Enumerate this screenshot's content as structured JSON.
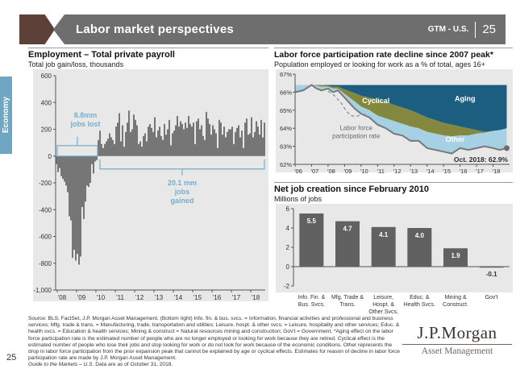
{
  "header": {
    "title": "Labor market perspectives",
    "gtm_label": "GTM - U.S.",
    "page_number": "25"
  },
  "sidebar": {
    "section_label": "Economy"
  },
  "page_number_footer": "25",
  "colors": {
    "header_gray": "#6e6e6e",
    "arrow_brown": "#5d4037",
    "tab_blue": "#6fa7c2",
    "bar_gray": "#616161",
    "annotation_blue": "#74afcd",
    "aging_blue": "#1b5e80",
    "cyclical_olive": "#84883e",
    "other_lightblue": "#a6d0e4",
    "line_gray": "#787878",
    "plot_bg": "#e8e8e8"
  },
  "footer": {
    "notes": "Source: BLS, FactSet, J.P. Morgan Asset Management. (Bottom right) Info. fin. & bus. svcs. = Information, financial activities and professional and business services; Mfg. trade & trans. = Manufacturing, trade, transportation and utilities; Leisure, hospt. & other svcs. = Leisure, hospitality and other services; Educ. & health svcs. = Education & health services; Mining & construct = Natural resources mining and construction; Gov't = Government. *Aging effect on the labor force participation rate is the estimated number of people who are no longer employed or looking for work because they are retired. Cyclical effect is the estimated number of people who lose their jobs and stop looking for work or do not look for work because of the economic conditions. Other represents the drop in labor force participation from the prior expansion peak that cannot be explained by age or cyclical effects. Estimates for reason of decline in labor force participation rate are made by J.P. Morgan Asset Management.",
    "asof_italic": "Guide to the Markets – U.S.",
    "asof_rest": " Data are as of October 31, 2018."
  },
  "logo": {
    "main": "J.P.Morgan",
    "sub": "Asset Management"
  },
  "chart_data": [
    {
      "type": "bar",
      "name": "payroll",
      "title": "Employment – Total private payroll",
      "subtitle": "Total job gain/loss, thousands",
      "ylabel": "Total job gain/loss, thousands",
      "ylim": [
        -1000,
        600
      ],
      "yticks": [
        600,
        400,
        200,
        0,
        -200,
        -400,
        -600,
        -800,
        -1000
      ],
      "ytick_labels": [
        "600",
        "400",
        "200",
        "0",
        "-200",
        "-400",
        "-600",
        "-800",
        "-1,000"
      ],
      "x_year_labels": [
        "'08",
        "'09",
        "'10",
        "'11",
        "'12",
        "'13",
        "'14",
        "'15",
        "'16",
        "'17",
        "'18"
      ],
      "start_month": "2008-01",
      "values": [
        -60,
        -120,
        -90,
        -150,
        -170,
        -190,
        -220,
        -270,
        -450,
        -480,
        -760,
        -700,
        -780,
        -730,
        -810,
        -750,
        -380,
        -470,
        -340,
        -220,
        -230,
        -200,
        -60,
        -130,
        -40,
        -30,
        120,
        190,
        90,
        60,
        90,
        110,
        130,
        170,
        140,
        120,
        90,
        220,
        250,
        320,
        110,
        230,
        70,
        180,
        250,
        340,
        180,
        200,
        310,
        270,
        230,
        90,
        110,
        70,
        150,
        170,
        110,
        220,
        240,
        210,
        180,
        290,
        140,
        190,
        220,
        150,
        120,
        240,
        160,
        200,
        270,
        80,
        170,
        190,
        230,
        300,
        220,
        260,
        240,
        200,
        250,
        210,
        300,
        240,
        220,
        250,
        90,
        260,
        280,
        200,
        230,
        150,
        120,
        330,
        280,
        240,
        160,
        230,
        200,
        170,
        60,
        270,
        250,
        160,
        220,
        140,
        180,
        200,
        200,
        220,
        90,
        180,
        210,
        230,
        140,
        190,
        60,
        250,
        280,
        160,
        170,
        290,
        140,
        180,
        260,
        220,
        160,
        270,
        140,
        250
      ],
      "annotations": {
        "jobs_lost": [
          "8.8mm",
          "jobs lost"
        ],
        "jobs_gained": [
          "20.1 mm",
          "jobs",
          "gained"
        ],
        "neg_span_months": [
          1,
          26
        ],
        "pos_span_months": [
          26,
          130
        ]
      }
    },
    {
      "type": "area",
      "name": "participation",
      "title": "Labor force participation rate decline since 2007 peak*",
      "subtitle": "Population employed or looking for work as a % of total, ages 16+",
      "ylim": [
        62,
        67
      ],
      "ytick_labels": [
        "67%",
        "66%",
        "65%",
        "64%",
        "63%",
        "62%"
      ],
      "x_year_labels": [
        "'06",
        "'07",
        "'08",
        "'09",
        "'10",
        "'11",
        "'12",
        "'13",
        "'14",
        "'15",
        "'16",
        "'17",
        "'18"
      ],
      "xlim": [
        2006,
        2019.0
      ],
      "top_flat": 66.4,
      "x": [
        2006,
        2006.5,
        2007,
        2007.3,
        2007.6,
        2008,
        2008.3,
        2008.6,
        2009,
        2009.3,
        2009.6,
        2010,
        2010.5,
        2011,
        2011.5,
        2012,
        2012.5,
        2013,
        2013.5,
        2014,
        2014.5,
        2015,
        2015.5,
        2016,
        2016.5,
        2017,
        2017.5,
        2018,
        2018.4,
        2018.83
      ],
      "line": [
        66.0,
        66.1,
        66.4,
        66.2,
        66.1,
        66.2,
        66.0,
        66.1,
        65.7,
        65.4,
        65.1,
        64.8,
        64.6,
        64.2,
        64.0,
        63.7,
        63.6,
        63.3,
        63.3,
        62.9,
        62.8,
        62.7,
        62.6,
        62.9,
        62.8,
        62.9,
        63.0,
        62.9,
        62.8,
        62.9
      ],
      "other_top": [
        66.4,
        66.4,
        66.4,
        66.35,
        66.3,
        66.3,
        66.2,
        66.2,
        65.9,
        65.7,
        65.5,
        65.2,
        65.0,
        64.7,
        64.55,
        64.4,
        64.25,
        64.1,
        64.0,
        63.8,
        63.7,
        63.6,
        63.55,
        63.6,
        63.6,
        63.7,
        63.75,
        63.85,
        63.9,
        64.0
      ],
      "cyclical_top": [
        66.4,
        66.4,
        66.4,
        66.4,
        66.4,
        66.35,
        66.3,
        66.3,
        66.15,
        66.05,
        65.95,
        65.8,
        65.7,
        65.6,
        65.45,
        65.3,
        65.15,
        65.0,
        64.8,
        64.6,
        64.45,
        64.3,
        64.2,
        64.1,
        64.0,
        63.9,
        63.8,
        63.85,
        63.9,
        64.0
      ],
      "dashed": [
        [
          2008.0,
          66.05
        ],
        [
          2008.4,
          65.8
        ],
        [
          2008.8,
          65.4
        ],
        [
          2009.1,
          64.95
        ],
        [
          2009.4,
          64.7
        ],
        [
          2009.7,
          64.65
        ],
        [
          2010.0,
          64.75
        ],
        [
          2010.3,
          64.8
        ]
      ],
      "labels": {
        "aging": "Aging",
        "cyclical": "Cyclical",
        "other": "Other",
        "lfpr": [
          "Labor force",
          "participation rate"
        ],
        "endpoint": "Oct. 2018: 62.9%"
      },
      "end_value": 62.9
    },
    {
      "type": "bar",
      "name": "netjobs",
      "title": "Net job creation since February 2010",
      "subtitle": "Millions of jobs",
      "ylim": [
        -2,
        6
      ],
      "yticks": [
        6,
        4,
        2,
        0,
        -2
      ],
      "ytick_labels": [
        "6",
        "4",
        "2",
        "0",
        "-2"
      ],
      "categories": [
        [
          "Info. Fin. &",
          "Bus. Svcs."
        ],
        [
          "Mfg. Trade &",
          "Trans."
        ],
        [
          "Leisure,",
          "Hospt. &",
          "Other Svcs."
        ],
        [
          "Educ. &",
          "Health Svcs."
        ],
        [
          "Mining &",
          "Construct."
        ],
        [
          "Gov't"
        ]
      ],
      "values": [
        5.5,
        4.7,
        4.1,
        4.0,
        1.9,
        -0.1
      ],
      "value_labels": [
        "5.5",
        "4.7",
        "4.1",
        "4.0",
        "1.9",
        "-0.1"
      ]
    }
  ],
  "panels": [
    {
      "title": "Employment – Total private payroll",
      "subtitle": "Total job gain/loss, thousands"
    },
    {
      "title": "Labor force participation rate decline since 2007 peak*",
      "subtitle": "Population employed or looking for work as a % of total, ages 16+"
    },
    {
      "title": "Net job creation since February 2010",
      "subtitle": "Millions of jobs"
    }
  ]
}
